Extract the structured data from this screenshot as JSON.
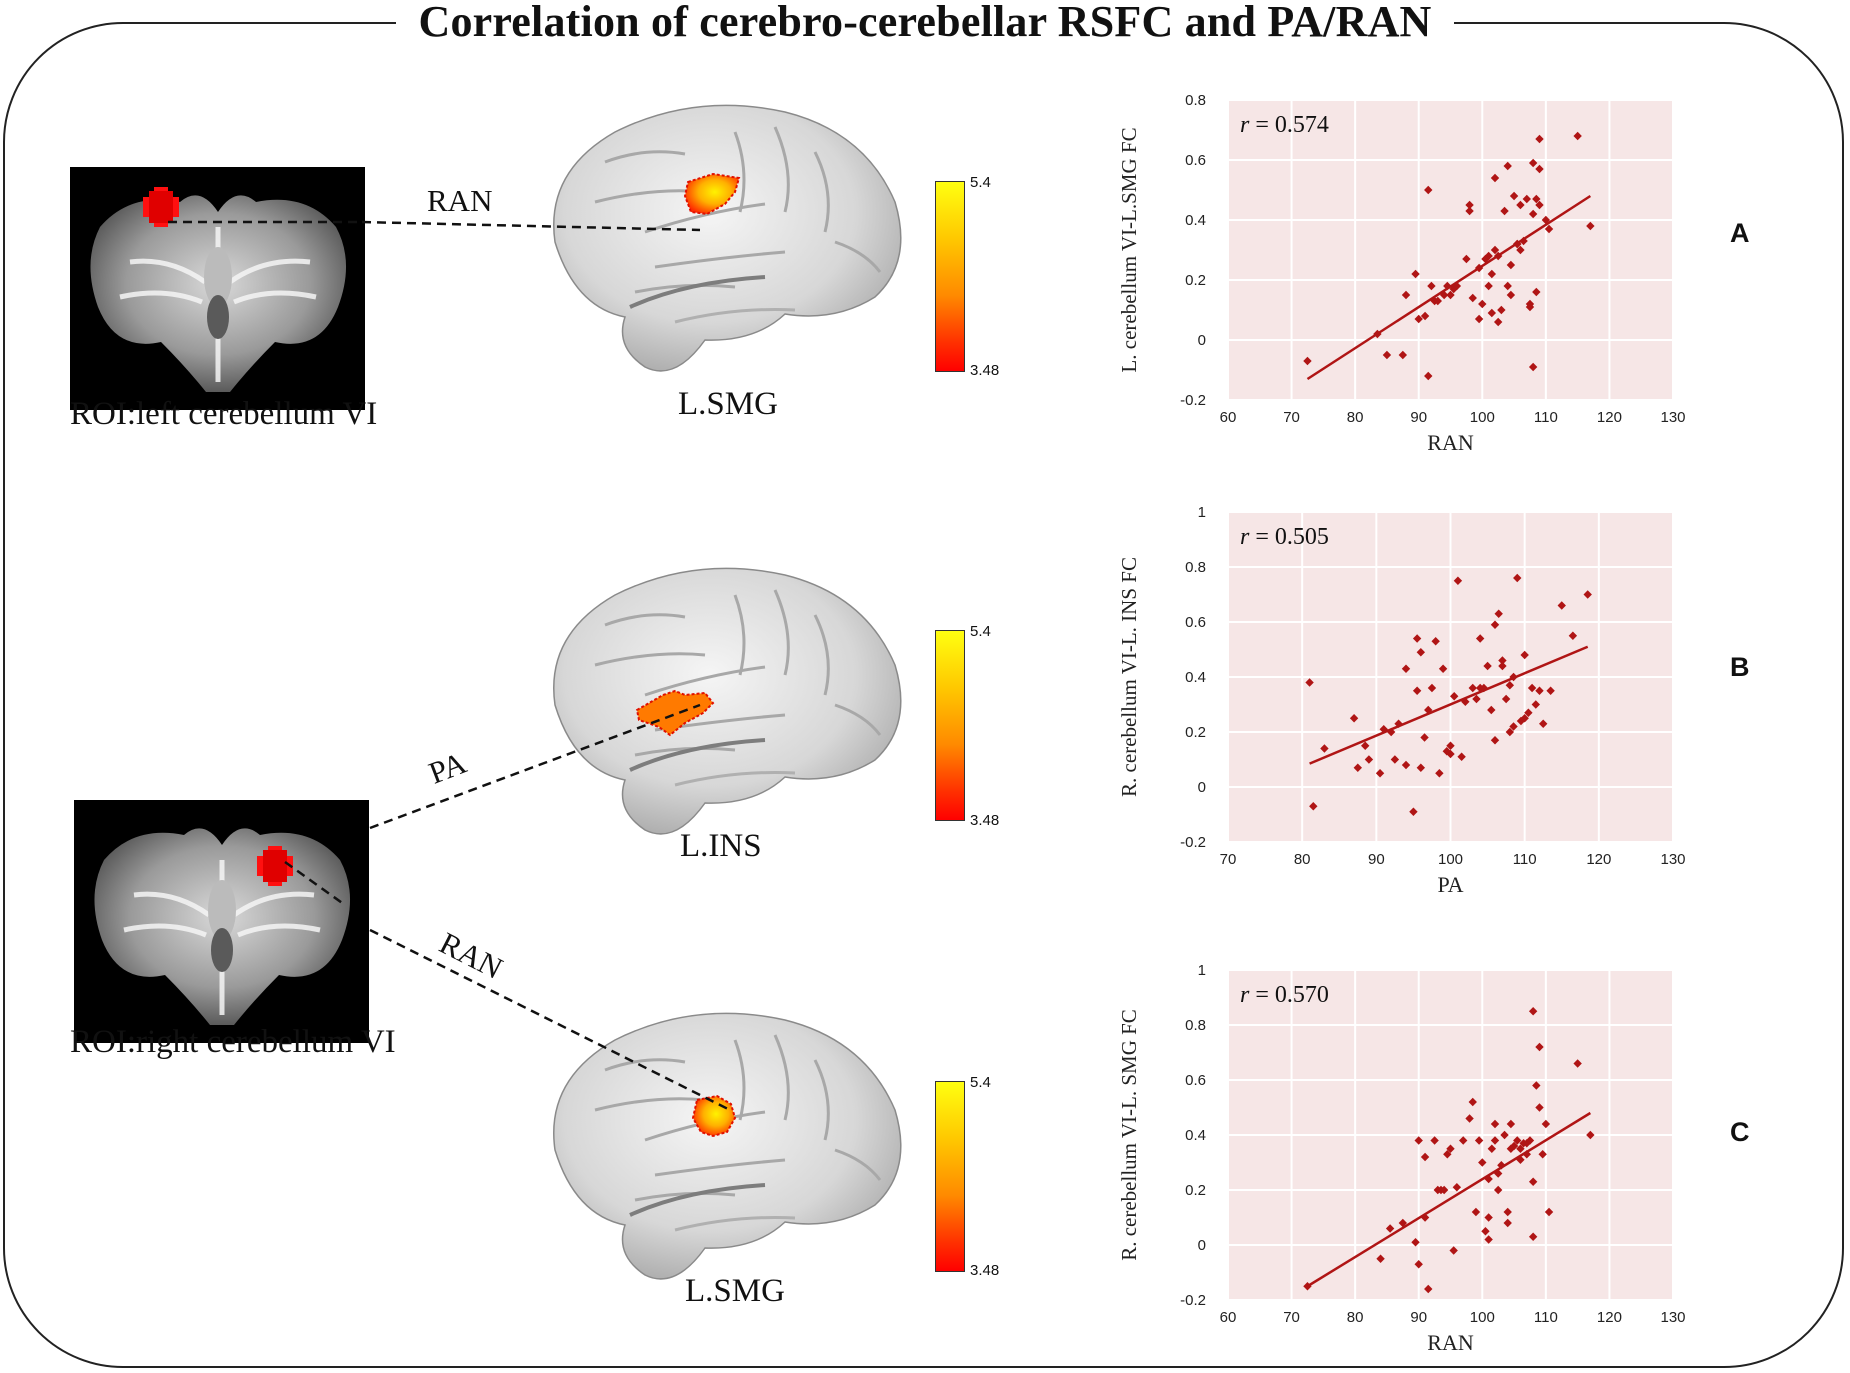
{
  "figure": {
    "title": "Correlation of cerebro-cerebellar RSFC and PA/RAN",
    "roi_left_caption": "ROI:left cerebellum VI",
    "roi_right_caption": "ROI:right cerebellum VI",
    "brain_captions": [
      "L.SMG",
      "L.INS",
      "L.SMG"
    ],
    "connection_labels": [
      "RAN",
      "PA",
      "RAN"
    ],
    "colorbar": {
      "max_label": "5.4",
      "min_label": "3.48"
    },
    "panel_letters": [
      "A",
      "B",
      "C"
    ],
    "colors": {
      "point": "#b01515",
      "fit": "#b01515",
      "plot_bg": "#f6e6e6",
      "grid": "#ffffff",
      "cluster_low": "#ff0000",
      "cluster_high": "#ffff10"
    }
  },
  "chart_data": [
    {
      "type": "scatter",
      "panel": "A",
      "xlabel": "RAN",
      "ylabel": "L. cerebellum VI-L.SMG FC",
      "annotation_r": "r",
      "annotation_value": " = 0.574",
      "xlim": [
        60,
        130
      ],
      "ylim": [
        -0.2,
        0.8
      ],
      "xticks": [
        60,
        70,
        80,
        90,
        100,
        110,
        120,
        130
      ],
      "xtick_labels": [
        "60",
        "70",
        "80",
        "90",
        "100",
        "110",
        "120",
        "130"
      ],
      "yticks": [
        -0.2,
        0,
        0.2,
        0.4,
        0.6,
        0.8
      ],
      "ytick_labels": [
        "-0.2",
        "0",
        "0.2",
        "0.4",
        "0.6",
        "0.8"
      ],
      "fit_line": [
        [
          72.5,
          -0.13
        ],
        [
          117,
          0.48
        ]
      ],
      "points": [
        [
          72.5,
          -0.07
        ],
        [
          83.5,
          0.02
        ],
        [
          85,
          -0.05
        ],
        [
          87.5,
          -0.05
        ],
        [
          88,
          0.15
        ],
        [
          90,
          0.07
        ],
        [
          89.5,
          0.22
        ],
        [
          91,
          0.08
        ],
        [
          91.5,
          -0.12
        ],
        [
          91.5,
          0.5
        ],
        [
          92,
          0.18
        ],
        [
          92.5,
          0.13
        ],
        [
          93,
          0.13
        ],
        [
          94,
          0.15
        ],
        [
          94.5,
          0.18
        ],
        [
          95,
          0.15
        ],
        [
          95.5,
          0.17
        ],
        [
          96,
          0.18
        ],
        [
          97.5,
          0.27
        ],
        [
          98,
          0.43
        ],
        [
          98,
          0.45
        ],
        [
          98.5,
          0.14
        ],
        [
          99.5,
          0.07
        ],
        [
          99.5,
          0.24
        ],
        [
          100,
          0.12
        ],
        [
          100.5,
          0.27
        ],
        [
          101,
          0.28
        ],
        [
          101,
          0.18
        ],
        [
          101.5,
          0.09
        ],
        [
          101.5,
          0.22
        ],
        [
          102,
          0.54
        ],
        [
          102,
          0.3
        ],
        [
          102.5,
          0.28
        ],
        [
          102.5,
          0.06
        ],
        [
          103,
          0.1
        ],
        [
          103.5,
          0.43
        ],
        [
          104,
          0.18
        ],
        [
          104,
          0.58
        ],
        [
          104.5,
          0.25
        ],
        [
          104.5,
          0.15
        ],
        [
          105,
          0.48
        ],
        [
          105.5,
          0.32
        ],
        [
          105.5,
          0.32
        ],
        [
          106,
          0.45
        ],
        [
          106,
          0.3
        ],
        [
          106.5,
          0.33
        ],
        [
          107,
          0.47
        ],
        [
          107.5,
          0.11
        ],
        [
          107.5,
          0.12
        ],
        [
          108,
          0.59
        ],
        [
          108,
          -0.09
        ],
        [
          108,
          0.42
        ],
        [
          108.5,
          0.16
        ],
        [
          108.5,
          0.47
        ],
        [
          109,
          0.57
        ],
        [
          109,
          0.67
        ],
        [
          109,
          0.45
        ],
        [
          110,
          0.4
        ],
        [
          110.5,
          0.37
        ],
        [
          115,
          0.68
        ],
        [
          117,
          0.38
        ]
      ]
    },
    {
      "type": "scatter",
      "panel": "B",
      "xlabel": "PA",
      "ylabel": "R. cerebellum VI-L. INS  FC",
      "annotation_r": "r",
      "annotation_value": " = 0.505",
      "xlim": [
        70,
        130
      ],
      "ylim": [
        -0.2,
        1
      ],
      "xticks": [
        70,
        80,
        90,
        100,
        110,
        120,
        130
      ],
      "xtick_labels": [
        "70",
        "80",
        "90",
        "100",
        "110",
        "120",
        "130"
      ],
      "yticks": [
        -0.2,
        0,
        0.2,
        0.4,
        0.6,
        0.8,
        1
      ],
      "ytick_labels": [
        "-0.2",
        "0",
        "0.2",
        "0.4",
        "0.6",
        "0.8",
        "1"
      ],
      "fit_line": [
        [
          81,
          0.085
        ],
        [
          118.5,
          0.51
        ]
      ],
      "points": [
        [
          81,
          0.38
        ],
        [
          81.5,
          -0.07
        ],
        [
          83,
          0.14
        ],
        [
          87,
          0.25
        ],
        [
          87.5,
          0.07
        ],
        [
          88.5,
          0.15
        ],
        [
          89,
          0.1
        ],
        [
          90.5,
          0.05
        ],
        [
          91,
          0.21
        ],
        [
          92,
          0.2
        ],
        [
          92.5,
          0.1
        ],
        [
          93,
          0.23
        ],
        [
          94,
          0.43
        ],
        [
          94,
          0.08
        ],
        [
          95,
          -0.09
        ],
        [
          95.5,
          0.35
        ],
        [
          95.5,
          0.54
        ],
        [
          96,
          0.49
        ],
        [
          96,
          0.07
        ],
        [
          96.5,
          0.18
        ],
        [
          97,
          0.28
        ],
        [
          97.5,
          0.36
        ],
        [
          98,
          0.53
        ],
        [
          98.5,
          0.05
        ],
        [
          99,
          0.43
        ],
        [
          99.5,
          0.13
        ],
        [
          100,
          0.12
        ],
        [
          100,
          0.15
        ],
        [
          100.5,
          0.33
        ],
        [
          101,
          0.75
        ],
        [
          101.5,
          0.11
        ],
        [
          102,
          0.31
        ],
        [
          103,
          0.36
        ],
        [
          103.5,
          0.32
        ],
        [
          104,
          0.36
        ],
        [
          104,
          0.54
        ],
        [
          104.5,
          0.36
        ],
        [
          105,
          0.44
        ],
        [
          105.5,
          0.28
        ],
        [
          106,
          0.17
        ],
        [
          106,
          0.59
        ],
        [
          106.5,
          0.63
        ],
        [
          107,
          0.44
        ],
        [
          107,
          0.46
        ],
        [
          107.5,
          0.32
        ],
        [
          108,
          0.37
        ],
        [
          108,
          0.2
        ],
        [
          108.5,
          0.4
        ],
        [
          108.5,
          0.22
        ],
        [
          109,
          0.76
        ],
        [
          109.5,
          0.24
        ],
        [
          110,
          0.48
        ],
        [
          110,
          0.25
        ],
        [
          110.5,
          0.27
        ],
        [
          111,
          0.36
        ],
        [
          111.5,
          0.3
        ],
        [
          112,
          0.35
        ],
        [
          112.5,
          0.23
        ],
        [
          113.5,
          0.35
        ],
        [
          115,
          0.66
        ],
        [
          116.5,
          0.55
        ],
        [
          118.5,
          0.7
        ]
      ]
    },
    {
      "type": "scatter",
      "panel": "C",
      "xlabel": "RAN",
      "ylabel": "R. cerebellum VI-L. SMG FC",
      "annotation_r": "r",
      "annotation_value": " = 0.570",
      "xlim": [
        60,
        130
      ],
      "ylim": [
        -0.2,
        1
      ],
      "xticks": [
        60,
        70,
        80,
        90,
        100,
        110,
        120,
        130
      ],
      "xtick_labels": [
        "60",
        "70",
        "80",
        "90",
        "100",
        "110",
        "120",
        "130"
      ],
      "yticks": [
        -0.2,
        0,
        0.2,
        0.4,
        0.6,
        0.8,
        1
      ],
      "ytick_labels": [
        "-0.2",
        "0",
        "0.2",
        "0.4",
        "0.6",
        "0.8",
        "1"
      ],
      "fit_line": [
        [
          72.5,
          -0.15
        ],
        [
          117,
          0.48
        ]
      ],
      "points": [
        [
          72.5,
          -0.15
        ],
        [
          84,
          -0.05
        ],
        [
          85.5,
          0.06
        ],
        [
          87.5,
          0.08
        ],
        [
          89.5,
          0.01
        ],
        [
          90,
          -0.07
        ],
        [
          90,
          0.38
        ],
        [
          91,
          0.32
        ],
        [
          91,
          0.1
        ],
        [
          91.5,
          -0.16
        ],
        [
          92.5,
          0.38
        ],
        [
          93,
          0.2
        ],
        [
          93.5,
          0.2
        ],
        [
          94,
          0.2
        ],
        [
          94.5,
          0.33
        ],
        [
          95,
          0.35
        ],
        [
          95.5,
          -0.02
        ],
        [
          96,
          0.21
        ],
        [
          97,
          0.38
        ],
        [
          98,
          0.46
        ],
        [
          98.5,
          0.52
        ],
        [
          99,
          0.12
        ],
        [
          99.5,
          0.38
        ],
        [
          100,
          0.3
        ],
        [
          100.5,
          0.05
        ],
        [
          101,
          0.02
        ],
        [
          101,
          0.24
        ],
        [
          101,
          0.1
        ],
        [
          101.5,
          0.35
        ],
        [
          102,
          0.44
        ],
        [
          102,
          0.38
        ],
        [
          102.5,
          0.26
        ],
        [
          102.5,
          0.2
        ],
        [
          103,
          0.29
        ],
        [
          103.5,
          0.4
        ],
        [
          104,
          0.12
        ],
        [
          104,
          0.08
        ],
        [
          104.5,
          0.44
        ],
        [
          104.5,
          0.35
        ],
        [
          105,
          0.36
        ],
        [
          105.5,
          0.38
        ],
        [
          106,
          0.31
        ],
        [
          106,
          0.35
        ],
        [
          106.5,
          0.37
        ],
        [
          107,
          0.33
        ],
        [
          107,
          0.37
        ],
        [
          107.5,
          0.38
        ],
        [
          108,
          0.23
        ],
        [
          108,
          0.03
        ],
        [
          108,
          0.85
        ],
        [
          108.5,
          0.58
        ],
        [
          109,
          0.5
        ],
        [
          109,
          0.72
        ],
        [
          109.5,
          0.33
        ],
        [
          110,
          0.44
        ],
        [
          110.5,
          0.12
        ],
        [
          115,
          0.66
        ],
        [
          117,
          0.4
        ]
      ]
    }
  ]
}
